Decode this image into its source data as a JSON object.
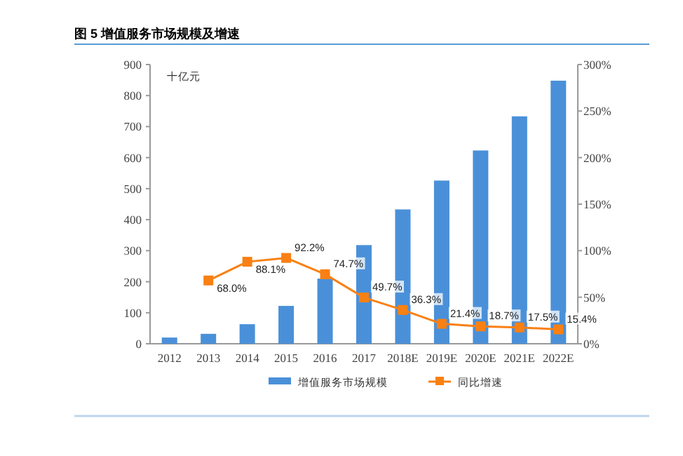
{
  "chart_data": {
    "type": "bar",
    "title": "图 5  增值服务市场规模及增速",
    "ylabel": "十亿元",
    "categories": [
      "2012",
      "2013",
      "2014",
      "2015",
      "2016",
      "2017",
      "2018E",
      "2019E",
      "2020E",
      "2021E",
      "2022E"
    ],
    "series": [
      {
        "name": "增值服务市场规模",
        "color": "#4a90d9",
        "values": [
          20,
          32,
          63,
          122,
          210,
          318,
          433,
          526,
          623,
          733,
          848
        ]
      },
      {
        "name": "同比增速",
        "type": "line",
        "axis": "y2",
        "color": "#f98012",
        "marker": "square",
        "values": [
          null,
          68.0,
          88.1,
          92.2,
          74.7,
          49.7,
          36.3,
          21.4,
          18.7,
          17.5,
          15.4
        ],
        "value_labels": [
          null,
          "68.0%",
          "88.1%",
          "92.2%",
          "74.7%",
          "49.7%",
          "36.3%",
          "21.4%",
          "18.7%",
          "17.5%",
          "15.4%"
        ]
      }
    ],
    "ylim": [
      0,
      900
    ],
    "yticks": [
      0,
      100,
      200,
      300,
      400,
      500,
      600,
      700,
      800,
      900
    ],
    "y2lim": [
      0,
      300
    ],
    "y2ticks": [
      {
        "value": 0,
        "label": "0%"
      },
      {
        "value": 50,
        "label": "50%"
      },
      {
        "value": 100,
        "label": "100%"
      },
      {
        "value": 150,
        "label": "150%"
      },
      {
        "value": 200,
        "label": "200%"
      },
      {
        "value": 250,
        "label": "250%"
      },
      {
        "value": 300,
        "label": "300%"
      }
    ],
    "legend": "bottom",
    "grid": false
  }
}
